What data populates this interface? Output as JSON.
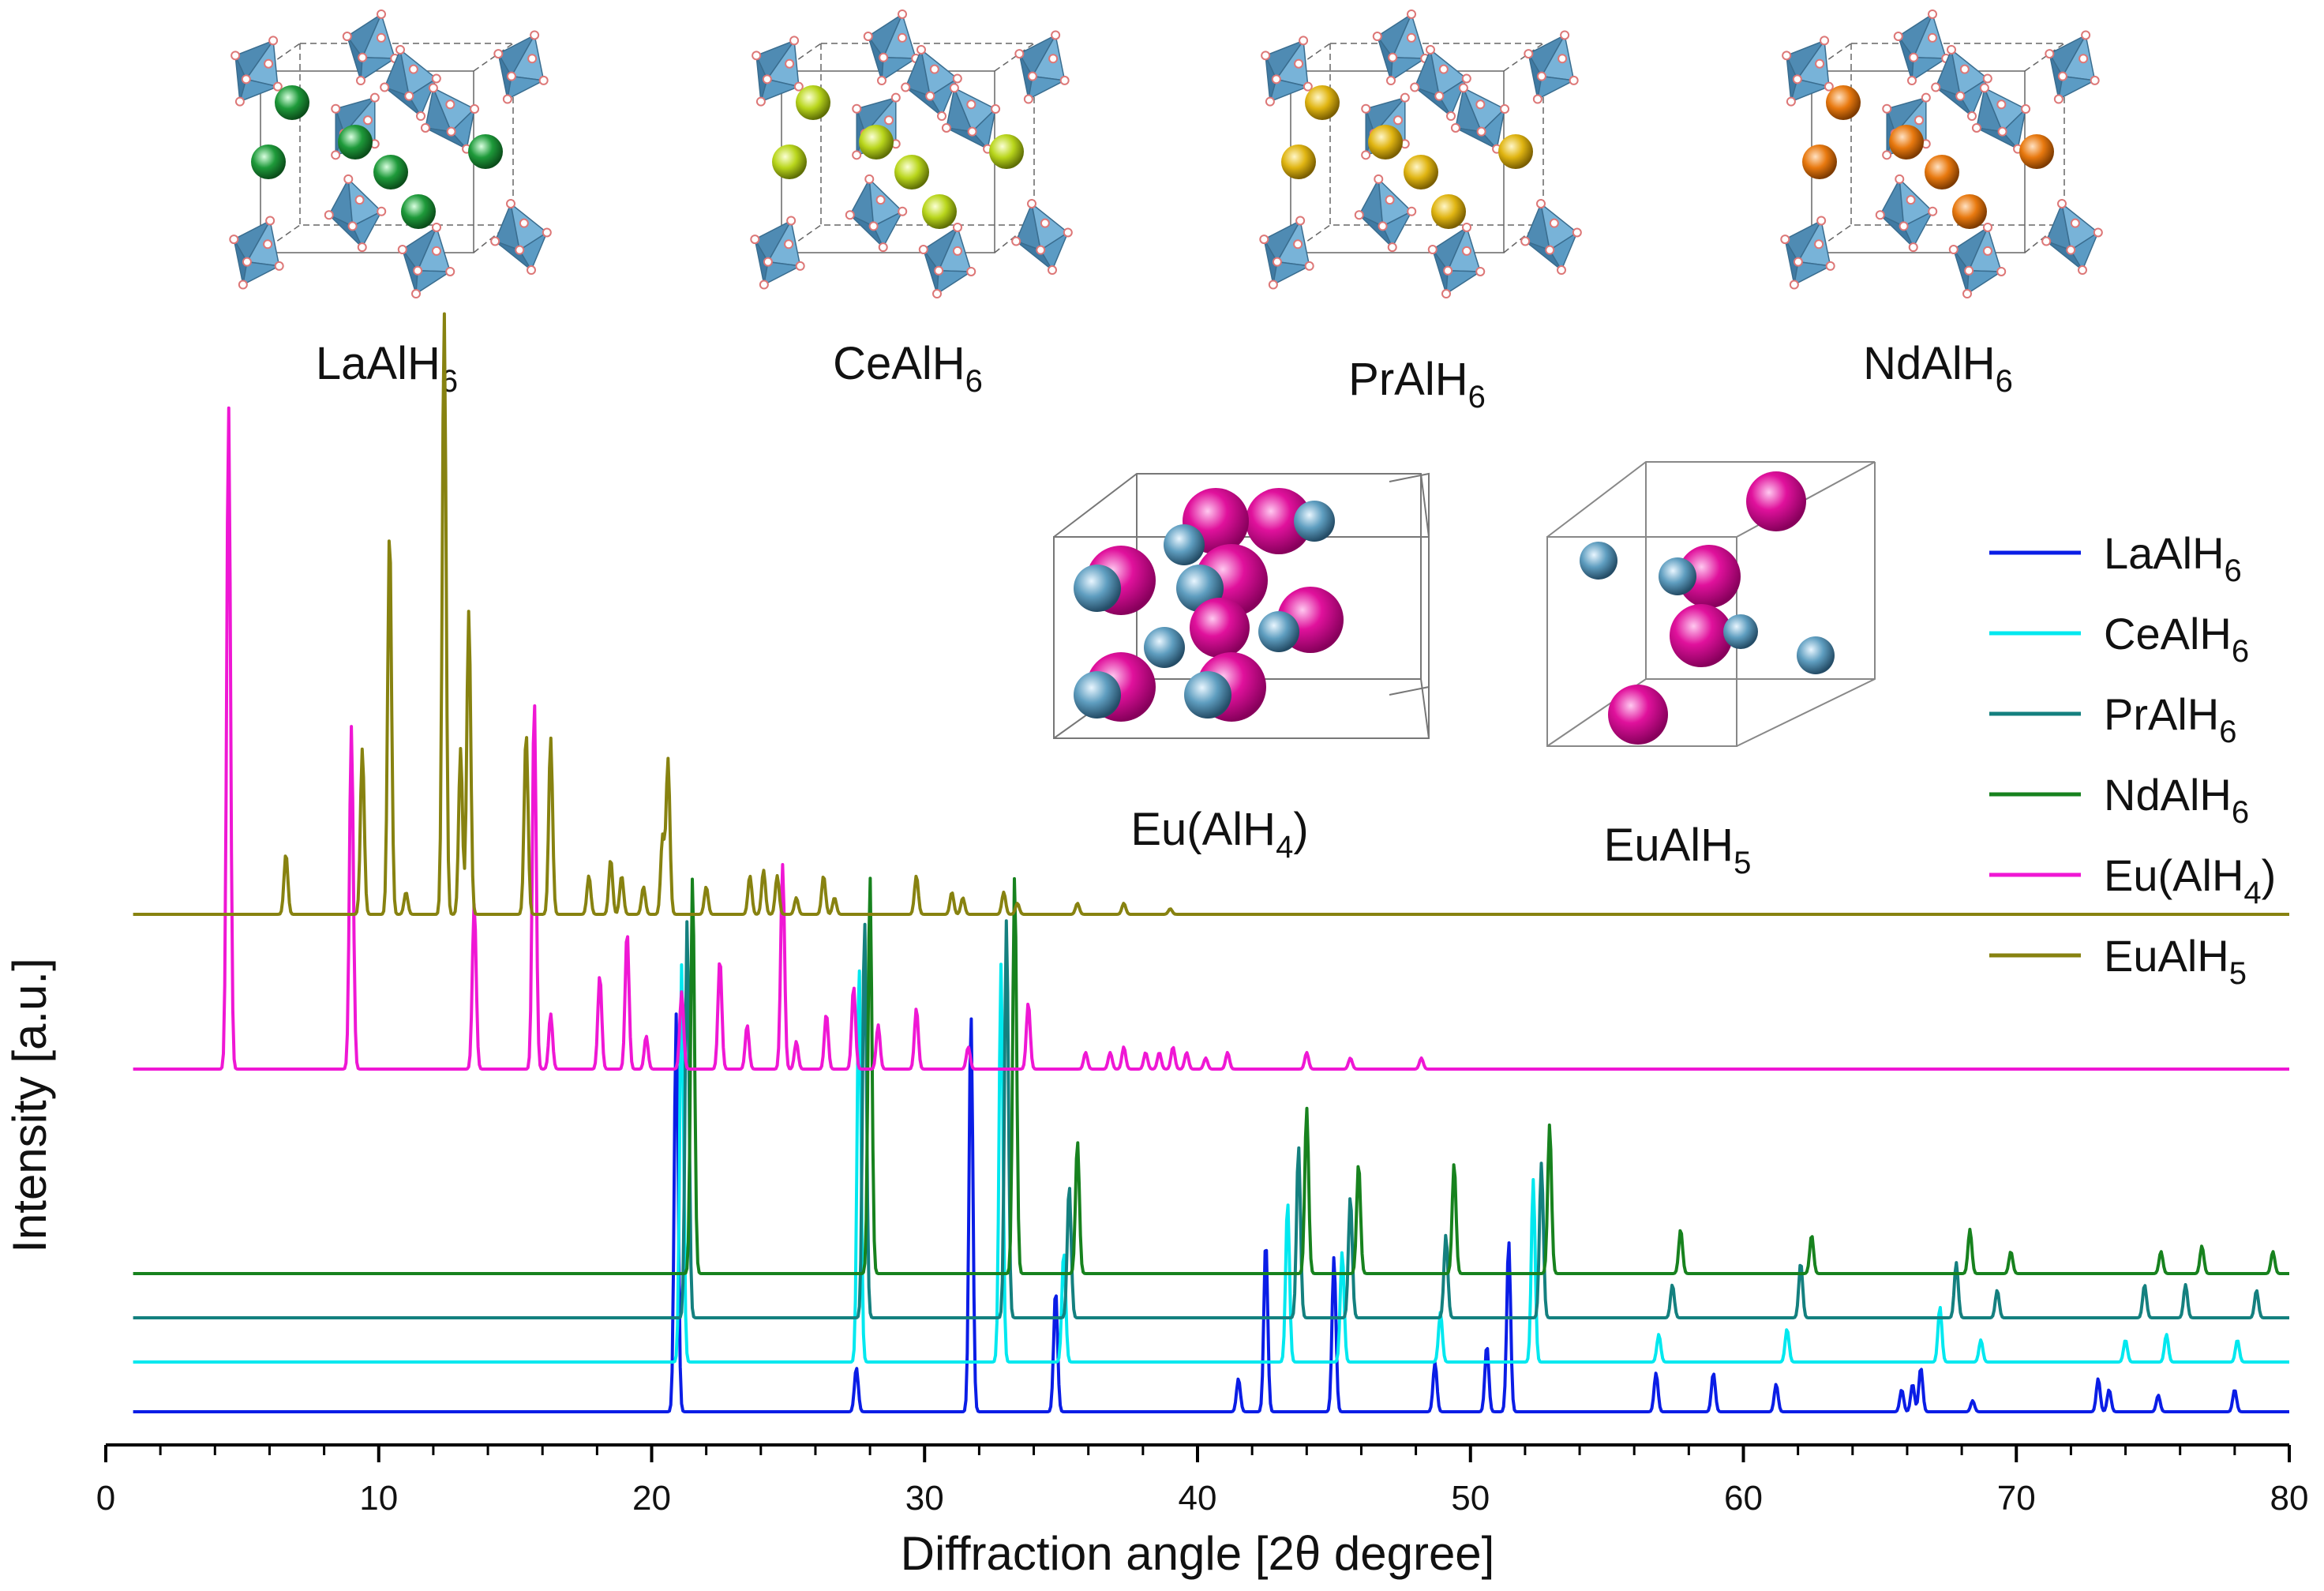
{
  "structures_top": [
    {
      "name": "La",
      "formula": "LaAlH",
      "sub": "6",
      "atom_color": "#1e9a3a"
    },
    {
      "name": "Ce",
      "formula": "CeAlH",
      "sub": "6",
      "atom_color": "#b9d61c"
    },
    {
      "name": "Pr",
      "formula": "PrAlH",
      "sub": "6",
      "atom_color": "#e0b512"
    },
    {
      "name": "Nd",
      "formula": "NdAlH",
      "sub": "6",
      "atom_color": "#e8790f"
    }
  ],
  "structures_eu": [
    {
      "name": "EuAlH4",
      "formula_pre": "Eu(AlH",
      "sub": "4",
      "formula_post": ")"
    },
    {
      "name": "EuAlH5",
      "formula_pre": "EuAlH",
      "sub": "5",
      "formula_post": ""
    }
  ],
  "colors": {
    "octahedron": "#5b9bc4",
    "eu_sphere": "#e0119c",
    "al_sphere": "#5f9ec0"
  },
  "chart_data": {
    "type": "line",
    "title": "",
    "xlabel": "Diffraction angle [2θ degree]",
    "ylabel": "Intensity [a.u.]",
    "xlim": [
      0,
      80
    ],
    "xticks": [
      0,
      10,
      20,
      30,
      40,
      50,
      60,
      70,
      80
    ],
    "yticks": [],
    "grid": false,
    "legend_position": "top-right",
    "series": [
      {
        "name": "LaAlH6",
        "label_main": "LaAlH",
        "label_sub": "6",
        "color": "#0a1de6",
        "baseline": 0.0,
        "peaks": [
          [
            20.9,
            0.72
          ],
          [
            27.5,
            0.08
          ],
          [
            31.7,
            0.72
          ],
          [
            34.8,
            0.22
          ],
          [
            41.5,
            0.06
          ],
          [
            42.5,
            0.31
          ],
          [
            45.0,
            0.28
          ],
          [
            48.7,
            0.09
          ],
          [
            50.6,
            0.12
          ],
          [
            51.4,
            0.31
          ],
          [
            56.8,
            0.07
          ],
          [
            58.9,
            0.07
          ],
          [
            61.2,
            0.05
          ],
          [
            65.8,
            0.04
          ],
          [
            66.2,
            0.05
          ],
          [
            66.5,
            0.08
          ],
          [
            68.4,
            0.02
          ],
          [
            73.0,
            0.06
          ],
          [
            73.4,
            0.04
          ],
          [
            75.2,
            0.03
          ],
          [
            78.0,
            0.04
          ]
        ]
      },
      {
        "name": "CeAlH6",
        "label_main": "CeAlH",
        "label_sub": "6",
        "color": "#00e8ef",
        "baseline": 0.09,
        "peaks": [
          [
            21.1,
            0.72
          ],
          [
            27.6,
            0.72
          ],
          [
            32.8,
            0.72
          ],
          [
            35.1,
            0.2
          ],
          [
            43.3,
            0.29
          ],
          [
            45.3,
            0.2
          ],
          [
            48.9,
            0.09
          ],
          [
            52.3,
            0.33
          ],
          [
            56.9,
            0.05
          ],
          [
            61.6,
            0.06
          ],
          [
            67.2,
            0.1
          ],
          [
            68.7,
            0.04
          ],
          [
            74.0,
            0.04
          ],
          [
            75.5,
            0.05
          ],
          [
            78.1,
            0.04
          ]
        ]
      },
      {
        "name": "PrAlH6",
        "label_main": "PrAlH",
        "label_sub": "6",
        "color": "#14807f",
        "baseline": 0.17,
        "peaks": [
          [
            21.3,
            0.72
          ],
          [
            27.8,
            0.72
          ],
          [
            33.0,
            0.72
          ],
          [
            35.3,
            0.24
          ],
          [
            43.7,
            0.31
          ],
          [
            45.6,
            0.22
          ],
          [
            49.1,
            0.15
          ],
          [
            52.6,
            0.28
          ],
          [
            57.4,
            0.06
          ],
          [
            62.1,
            0.1
          ],
          [
            67.8,
            0.1
          ],
          [
            69.3,
            0.05
          ],
          [
            74.7,
            0.06
          ],
          [
            76.2,
            0.06
          ],
          [
            78.8,
            0.05
          ]
        ]
      },
      {
        "name": "NdAlH6",
        "label_main": "NdAlH",
        "label_sub": "6",
        "color": "#17821e",
        "baseline": 0.25,
        "peaks": [
          [
            21.5,
            0.72
          ],
          [
            28.0,
            0.72
          ],
          [
            33.3,
            0.72
          ],
          [
            35.6,
            0.24
          ],
          [
            44.0,
            0.3
          ],
          [
            45.9,
            0.2
          ],
          [
            49.4,
            0.2
          ],
          [
            52.9,
            0.27
          ],
          [
            57.7,
            0.08
          ],
          [
            62.5,
            0.07
          ],
          [
            68.3,
            0.08
          ],
          [
            69.8,
            0.04
          ],
          [
            75.3,
            0.04
          ],
          [
            76.8,
            0.05
          ],
          [
            79.4,
            0.04
          ]
        ]
      },
      {
        "name": "Eu(AlH4)",
        "label_main": "Eu(AlH",
        "label_sub": "4",
        "label_post": ")",
        "color": "#ef17d4",
        "baseline": 0.62,
        "peaks": [
          [
            4.5,
            1.2
          ],
          [
            9.0,
            0.62
          ],
          [
            13.5,
            0.3
          ],
          [
            15.7,
            0.67
          ],
          [
            16.3,
            0.1
          ],
          [
            18.1,
            0.17
          ],
          [
            19.1,
            0.25
          ],
          [
            19.8,
            0.06
          ],
          [
            21.1,
            0.14
          ],
          [
            22.5,
            0.2
          ],
          [
            23.5,
            0.08
          ],
          [
            24.8,
            0.37
          ],
          [
            25.3,
            0.05
          ],
          [
            26.4,
            0.1
          ],
          [
            27.4,
            0.15
          ],
          [
            28.3,
            0.08
          ],
          [
            29.7,
            0.11
          ],
          [
            31.6,
            0.04
          ],
          [
            33.8,
            0.12
          ],
          [
            35.9,
            0.03
          ],
          [
            36.8,
            0.03
          ],
          [
            37.3,
            0.04
          ],
          [
            38.1,
            0.03
          ],
          [
            38.6,
            0.03
          ],
          [
            39.1,
            0.04
          ],
          [
            39.6,
            0.03
          ],
          [
            40.3,
            0.02
          ],
          [
            41.1,
            0.03
          ],
          [
            44.0,
            0.03
          ],
          [
            45.6,
            0.02
          ],
          [
            48.2,
            0.02
          ]
        ]
      },
      {
        "name": "EuAlH5",
        "label_main": "EuAlH",
        "label_sub": "5",
        "color": "#878210",
        "baseline": 0.9,
        "peaks": [
          [
            6.6,
            0.11
          ],
          [
            9.4,
            0.3
          ],
          [
            10.4,
            0.7
          ],
          [
            11.0,
            0.04
          ],
          [
            12.4,
            1.09
          ],
          [
            13.0,
            0.3
          ],
          [
            13.3,
            0.55
          ],
          [
            15.4,
            0.33
          ],
          [
            16.3,
            0.32
          ],
          [
            17.7,
            0.07
          ],
          [
            18.5,
            0.1
          ],
          [
            18.9,
            0.07
          ],
          [
            19.7,
            0.05
          ],
          [
            20.4,
            0.14
          ],
          [
            20.6,
            0.28
          ],
          [
            22.0,
            0.05
          ],
          [
            23.6,
            0.07
          ],
          [
            24.1,
            0.08
          ],
          [
            24.6,
            0.07
          ],
          [
            25.3,
            0.03
          ],
          [
            26.3,
            0.07
          ],
          [
            26.7,
            0.03
          ],
          [
            29.7,
            0.07
          ],
          [
            31.0,
            0.04
          ],
          [
            31.4,
            0.03
          ],
          [
            32.9,
            0.04
          ],
          [
            33.4,
            0.02
          ],
          [
            35.6,
            0.02
          ],
          [
            37.3,
            0.02
          ],
          [
            39.0,
            0.01
          ]
        ]
      }
    ]
  }
}
